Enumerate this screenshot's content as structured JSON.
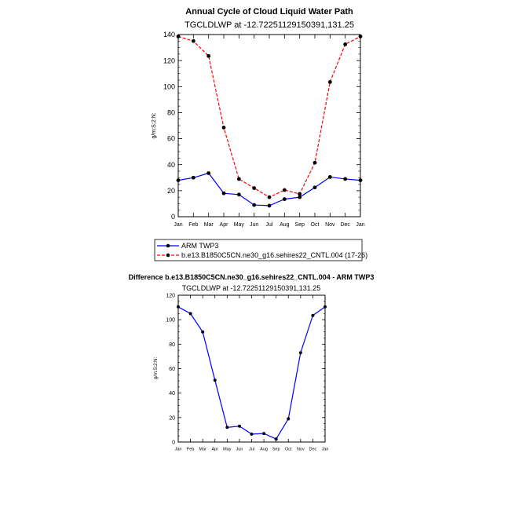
{
  "chart_data": [
    {
      "type": "line",
      "title": "Annual Cycle of Cloud Liquid Water Path",
      "subtitle": "TGCLDLWP at -12.7225112915039​1,131.25",
      "xlabel": "",
      "ylabel": "g/m:S:2:N:",
      "categories": [
        "Jan",
        "Feb",
        "Mar",
        "Apr",
        "May",
        "Jun",
        "Jul",
        "Aug",
        "Sep",
        "Oct",
        "Nov",
        "Dec",
        "Jan"
      ],
      "ylim": [
        0,
        140
      ],
      "yticks": [
        0,
        20,
        40,
        60,
        80,
        100,
        120,
        140
      ],
      "yticklabels": [
        "0",
        "20",
        "40",
        "60",
        "80",
        "100",
        "120",
        "140"
      ],
      "series": [
        {
          "name": "ARM TWP3",
          "color": "#0000ff",
          "dashed": false,
          "values": [
            28,
            30,
            33.5,
            18,
            17,
            9,
            8.5,
            13.5,
            15,
            22.5,
            30.5,
            29,
            28
          ]
        },
        {
          "name": "b.e13.B1850C5CN.ne30_g16.sehires22_CNTL.004 (17-26)",
          "color": "#ff0000",
          "dashed": true,
          "values": [
            138.5,
            135,
            123.5,
            68.5,
            29,
            22,
            15,
            20.5,
            17.5,
            41.5,
            103.5,
            132.5,
            138.5
          ]
        }
      ]
    },
    {
      "type": "line",
      "title": "Difference b.e13.B1850C5CN.ne30_g16.sehires22_CNTL.004 - ARM TWP3",
      "subtitle": "TGCLDLWP at -12.7225112915039​1,131.25",
      "xlabel": "",
      "ylabel": "g/m:S:2:N:",
      "categories": [
        "Jan",
        "Feb",
        "Mar",
        "Apr",
        "May",
        "Jun",
        "Jul",
        "Aug",
        "Sep",
        "Oct",
        "Nov",
        "Dec",
        "Jan"
      ],
      "ylim": [
        0,
        120
      ],
      "yticks": [
        0,
        20,
        40,
        60,
        80,
        100,
        120
      ],
      "yticklabels": [
        "0",
        "20",
        "40",
        "60",
        "80",
        "100",
        "120"
      ],
      "series": [
        {
          "name": "Difference",
          "color": "#0000ff",
          "dashed": false,
          "values": [
            110.5,
            105,
            90,
            50.5,
            12,
            13,
            6.5,
            7,
            2.5,
            19,
            73,
            103.5,
            110.5
          ]
        }
      ]
    }
  ]
}
